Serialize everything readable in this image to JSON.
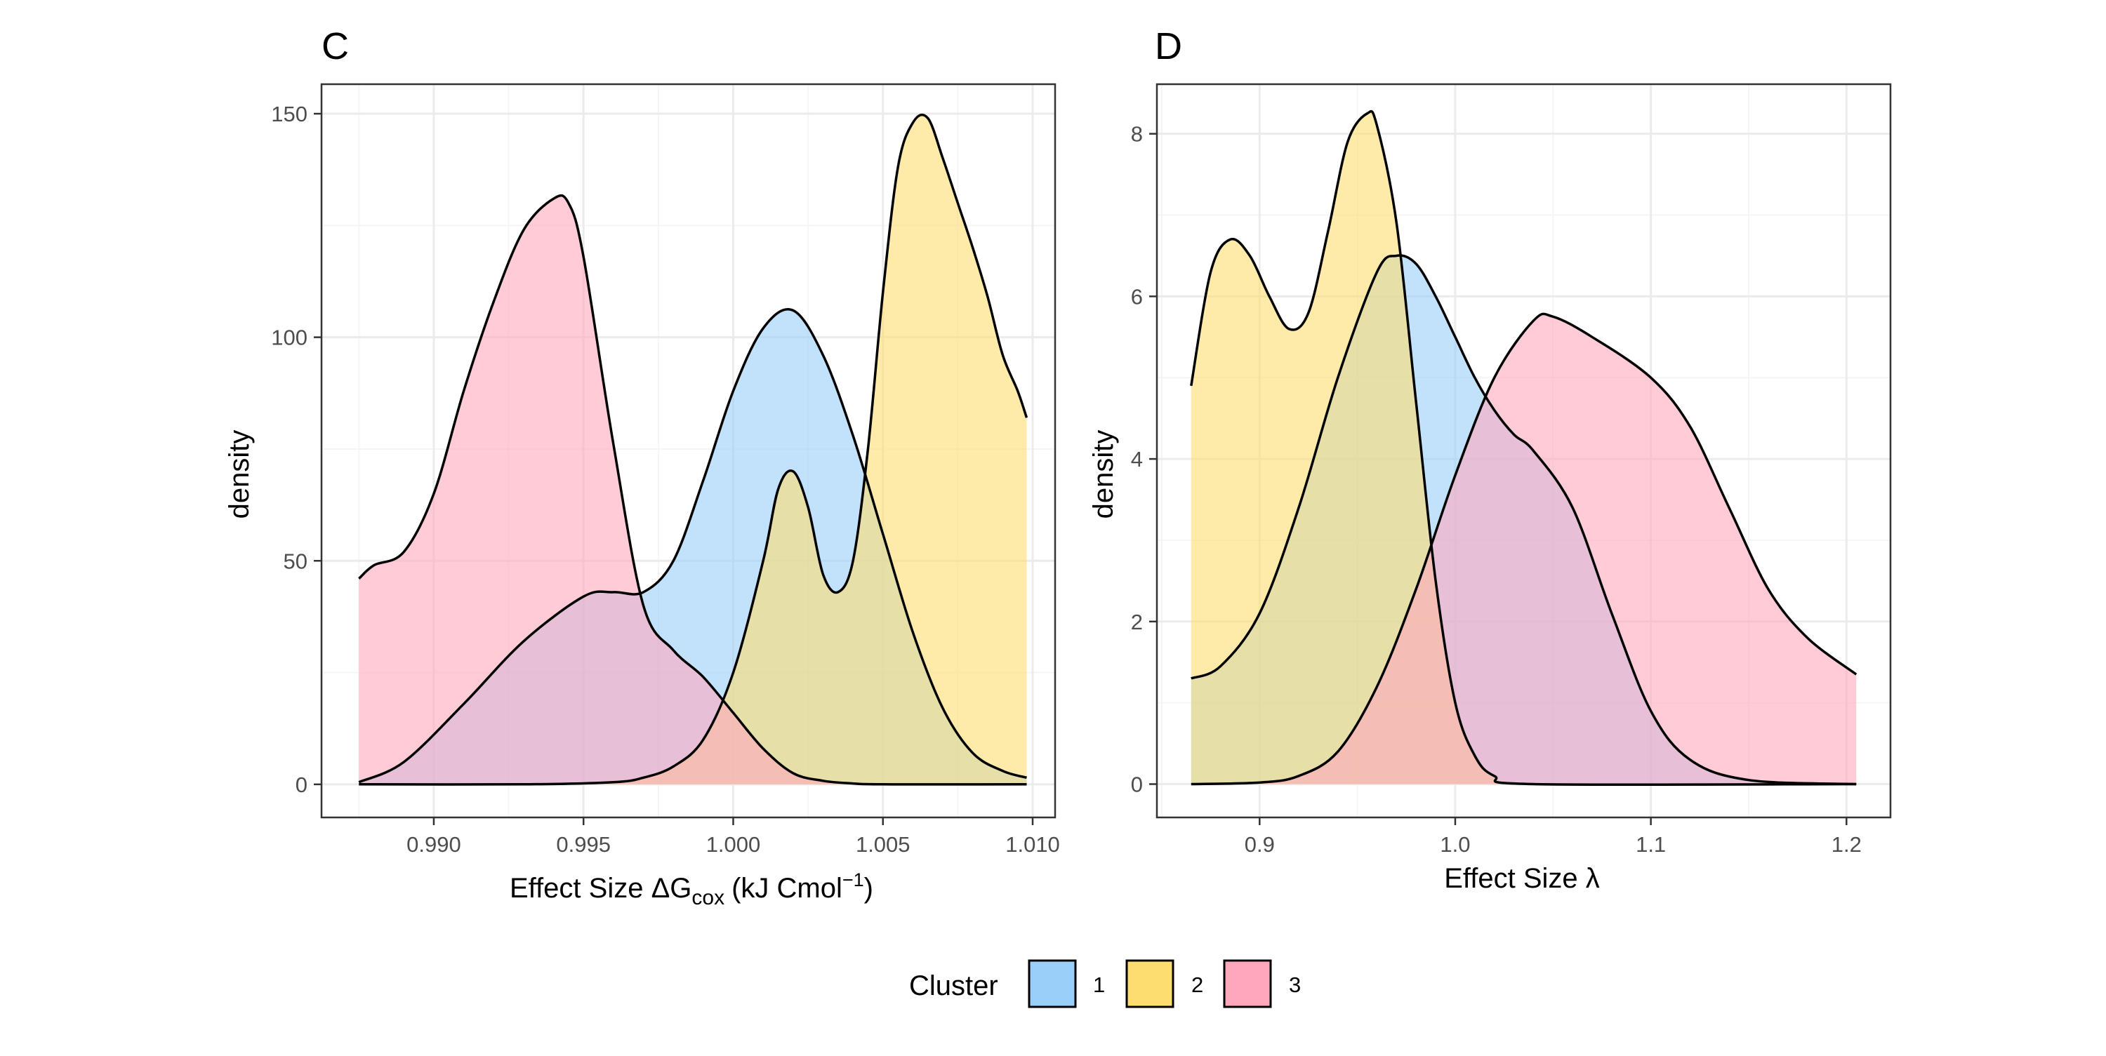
{
  "chart_data": [
    {
      "type": "area",
      "panel_tag": "C",
      "xlabel_main": "Effect Size ΔG",
      "xlabel_sub": "cox",
      "xlabel_unit_pre": "(kJ Cmol",
      "xlabel_unit_sup": "−1",
      "xlabel_unit_post": ")",
      "ylabel": "density",
      "xlim": [
        0.98625,
        1.01075
      ],
      "ylim": [
        -7.4,
        156.6
      ],
      "x_ticks": [
        0.99,
        0.995,
        1.0,
        1.005,
        1.01
      ],
      "x_tick_labels": [
        "0.990",
        "0.995",
        "1.000",
        "1.005",
        "1.010"
      ],
      "y_ticks": [
        0,
        50,
        100,
        150
      ],
      "y_tick_labels": [
        "0",
        "50",
        "100",
        "150"
      ],
      "grid": true,
      "series": [
        {
          "name": "1",
          "x": [
            0.9875,
            0.989,
            0.991,
            0.993,
            0.995,
            0.996,
            0.997,
            0.998,
            0.999,
            1.0,
            1.001,
            1.002,
            1.003,
            1.004,
            1.005,
            1.006,
            1.007,
            1.008,
            1.009,
            1.0098
          ],
          "y": [
            0.5,
            5,
            18,
            32,
            42,
            43,
            43,
            50,
            68,
            88,
            102,
            106,
            96,
            78,
            56,
            34,
            17,
            7,
            3,
            1.5
          ]
        },
        {
          "name": "2",
          "x": [
            0.9875,
            0.993,
            0.996,
            0.997,
            0.998,
            0.999,
            1.0,
            1.001,
            1.0015,
            1.002,
            1.0025,
            1.003,
            1.0035,
            1.004,
            1.0045,
            1.005,
            1.0055,
            1.006,
            1.0065,
            1.007,
            1.0075,
            1.008,
            1.0085,
            1.009,
            1.0095,
            1.0098
          ],
          "y": [
            0,
            0,
            0.5,
            1.5,
            4,
            10,
            25,
            50,
            66,
            70,
            62,
            47,
            43,
            50,
            75,
            110,
            138,
            148,
            149,
            140,
            130,
            120,
            109,
            96,
            88,
            82
          ]
        },
        {
          "name": "3",
          "x": [
            0.9875,
            0.988,
            0.989,
            0.99,
            0.991,
            0.992,
            0.993,
            0.994,
            0.9945,
            0.995,
            0.996,
            0.997,
            0.998,
            0.999,
            1.0,
            1.001,
            1.002,
            1.003,
            1.004,
            1.005,
            1.0098
          ],
          "y": [
            46,
            49,
            52,
            65,
            88,
            108,
            124,
            131,
            130,
            118,
            76,
            40,
            30,
            24,
            16,
            8,
            2.5,
            0.8,
            0.2,
            0,
            0
          ]
        }
      ]
    },
    {
      "type": "area",
      "panel_tag": "D",
      "xlabel": "Effect Size λ",
      "ylabel": "density",
      "xlim": [
        0.8475,
        1.2225
      ],
      "ylim": [
        -0.41,
        8.61
      ],
      "x_ticks": [
        0.9,
        1.0,
        1.1,
        1.2
      ],
      "x_tick_labels": [
        "0.9",
        "1.0",
        "1.1",
        "1.2"
      ],
      "y_ticks": [
        0,
        2,
        4,
        6,
        8
      ],
      "y_tick_labels": [
        "0",
        "2",
        "4",
        "6",
        "8"
      ],
      "grid": true,
      "series": [
        {
          "name": "1",
          "x": [
            0.865,
            0.88,
            0.9,
            0.92,
            0.94,
            0.96,
            0.97,
            0.98,
            0.99,
            1.0,
            1.01,
            1.02,
            1.03,
            1.04,
            1.06,
            1.08,
            1.1,
            1.12,
            1.15,
            1.205
          ],
          "y": [
            1.3,
            1.45,
            2.1,
            3.4,
            5.0,
            6.3,
            6.5,
            6.4,
            6.0,
            5.5,
            5.0,
            4.6,
            4.3,
            4.1,
            3.4,
            2.1,
            0.9,
            0.3,
            0.05,
            0
          ]
        },
        {
          "name": "2",
          "x": [
            0.865,
            0.875,
            0.885,
            0.895,
            0.905,
            0.915,
            0.925,
            0.935,
            0.945,
            0.955,
            0.96,
            0.97,
            0.98,
            0.99,
            1.0,
            1.01,
            1.02,
            1.04,
            1.205
          ],
          "y": [
            4.9,
            6.3,
            6.7,
            6.5,
            6.0,
            5.6,
            5.8,
            6.8,
            7.9,
            8.25,
            8.1,
            6.9,
            4.7,
            2.5,
            1.0,
            0.35,
            0.1,
            0,
            0
          ]
        },
        {
          "name": "3",
          "x": [
            0.865,
            0.9,
            0.92,
            0.94,
            0.96,
            0.98,
            1.0,
            1.02,
            1.04,
            1.05,
            1.07,
            1.1,
            1.12,
            1.14,
            1.16,
            1.18,
            1.205
          ],
          "y": [
            0,
            0.02,
            0.1,
            0.4,
            1.2,
            2.4,
            3.8,
            5.0,
            5.7,
            5.75,
            5.5,
            5.0,
            4.4,
            3.4,
            2.4,
            1.8,
            1.35
          ]
        }
      ]
    }
  ],
  "legend": {
    "title": "Cluster",
    "placement": "bottom",
    "items": [
      {
        "label": "1",
        "color": "#9acffa"
      },
      {
        "label": "2",
        "color": "#fddd6f"
      },
      {
        "label": "3",
        "color": "#ffa8bc"
      }
    ]
  },
  "colors": {
    "fill_opacity": 0.6,
    "outline": "#000000",
    "grid_major": "#ebebeb",
    "grid_minor": "#f5f5f5",
    "panel_border": "#333333"
  }
}
